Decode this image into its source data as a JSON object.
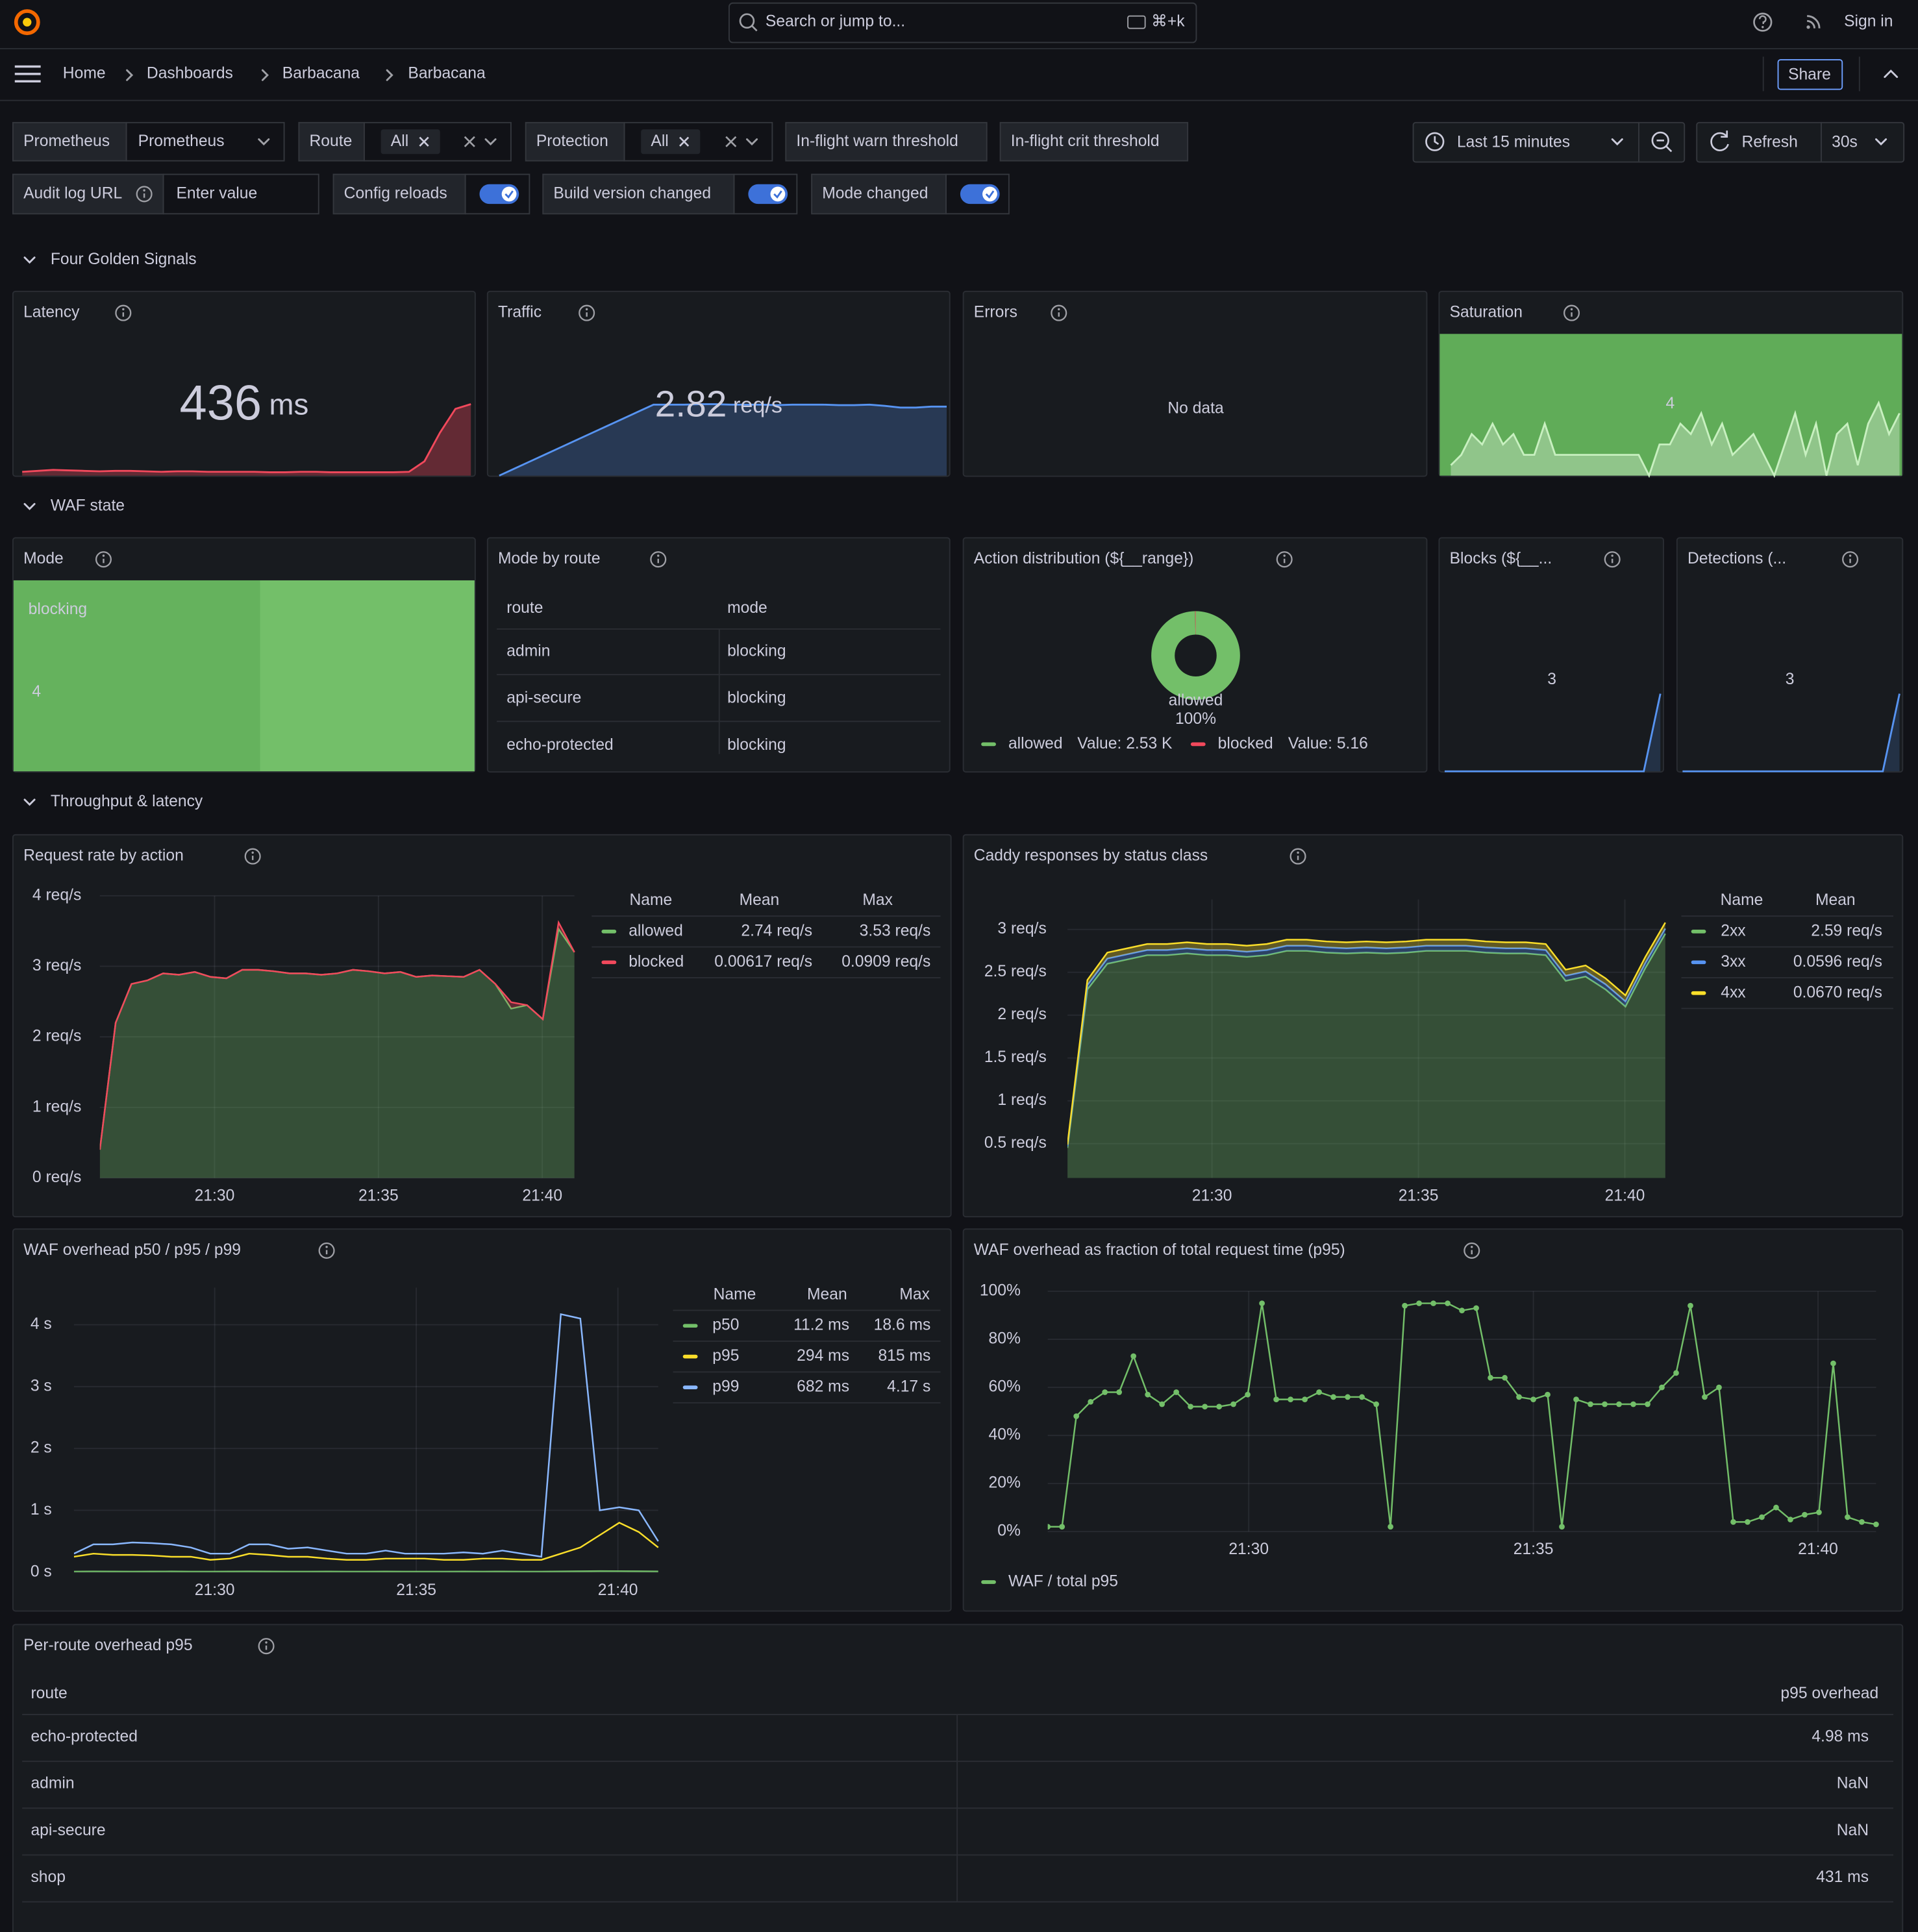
{
  "topbar": {
    "search_placeholder": "Search or jump to...",
    "shortcut": "⌘+k",
    "sign_in": "Sign in"
  },
  "breadcrumbs": [
    "Home",
    "Dashboards",
    "Barbacana",
    "Barbacana"
  ],
  "share": "Share",
  "variables": [
    {
      "label": "Prometheus",
      "value": "Prometheus"
    },
    {
      "label": "Route",
      "value": "All"
    },
    {
      "label": "Protection",
      "value": "All"
    },
    {
      "label": "In-flight warn threshold"
    },
    {
      "label": "In-flight crit threshold"
    },
    {
      "label": "Audit log URL",
      "placeholder": "Enter value"
    },
    {
      "label": "Config reloads",
      "enabled": true
    },
    {
      "label": "Build version changed",
      "enabled": true
    },
    {
      "label": "Mode changed",
      "enabled": true
    }
  ],
  "time_picker": {
    "range": "Last 15 minutes",
    "refresh": "Refresh",
    "interval": "30s"
  },
  "rows": [
    "Four Golden Signals",
    "WAF state",
    "Throughput & latency"
  ],
  "stats": {
    "latency": {
      "title": "Latency",
      "value": 436,
      "unit": "ms",
      "color": "#f2495c",
      "sparkline": [
        8,
        10,
        12,
        11,
        10,
        9,
        10,
        10,
        9,
        8,
        9,
        9,
        8,
        8,
        8,
        8,
        7,
        7,
        8,
        8,
        7,
        7,
        7,
        7,
        7,
        8,
        30,
        90,
        140,
        150
      ]
    },
    "traffic": {
      "title": "Traffic",
      "value": 2.82,
      "unit": "req/s",
      "color": "#5794f2",
      "sparkline": [
        0,
        0.29,
        0.58,
        0.87,
        1.16,
        1.45,
        1.74,
        2.03,
        2.32,
        2.61,
        2.9,
        2.9,
        2.9,
        2.92,
        2.92,
        2.9,
        2.9,
        2.9,
        2.88,
        2.9,
        2.9,
        2.9,
        2.88,
        2.88,
        2.9,
        2.85,
        2.78,
        2.78,
        2.82,
        2.82
      ]
    },
    "errors": {
      "title": "Errors",
      "text": "No data",
      "color": "#73bf69"
    },
    "saturation": {
      "title": "Saturation",
      "value": 4,
      "color": "#73bf69",
      "sparkline": [
        1,
        2,
        4,
        3,
        5,
        3,
        4,
        2,
        2,
        5,
        2,
        2,
        2,
        2,
        2,
        2,
        2,
        2,
        2,
        0,
        3,
        3,
        5,
        4,
        6,
        3,
        5,
        2,
        3,
        4,
        2,
        0,
        3,
        6,
        2,
        5,
        0,
        4,
        5,
        1,
        5,
        7,
        4,
        6
      ]
    },
    "mode": {
      "title": "Mode",
      "text": "blocking",
      "value": 4,
      "color": "#73bf69"
    },
    "blocks": {
      "title": "Blocks (${__...",
      "value": 3,
      "color": "#5794f2",
      "sparkline": [
        0,
        0,
        0,
        0,
        0,
        0,
        0,
        0,
        0,
        0,
        0,
        0,
        0,
        3
      ]
    },
    "detections": {
      "title": "Detections (...",
      "value": 3,
      "color": "#5794f2",
      "sparkline": [
        0,
        0,
        0,
        0,
        0,
        0,
        0,
        0,
        0,
        0,
        0,
        0,
        0,
        3
      ]
    }
  },
  "mode_by_route": {
    "title": "Mode by route",
    "columns": [
      "route",
      "mode"
    ],
    "rows": [
      [
        "admin",
        "blocking"
      ],
      [
        "api-secure",
        "blocking"
      ],
      [
        "echo-protected",
        "blocking"
      ]
    ]
  },
  "chart_data": [
    {
      "type": "pie",
      "donut": true,
      "title": "Action distribution (${__range})",
      "categories": [
        "allowed",
        "blocked"
      ],
      "values": [
        2530,
        5.16
      ],
      "value_labels": [
        "Value: 2.53 K",
        "Value: 5.16"
      ],
      "colors": [
        "#73bf69",
        "#f2495c"
      ],
      "center_label": "allowed",
      "center_percent": "100%"
    },
    {
      "type": "line",
      "stacked": true,
      "points": false,
      "legend": "right",
      "title": "Request rate by action",
      "legend_columns": [
        "Name",
        "Mean",
        "Max"
      ],
      "xlim": [
        26.5,
        40.98
      ],
      "xticks": [
        {
          "value": 30,
          "label": "21:30"
        },
        {
          "value": 35,
          "label": "21:35"
        },
        {
          "value": 40,
          "label": "21:40"
        }
      ],
      "ylim": [
        0,
        4
      ],
      "yticks": [
        {
          "value": 0,
          "label": "0 req/s"
        },
        {
          "value": 1,
          "label": "1 req/s"
        },
        {
          "value": 2,
          "label": "2 req/s"
        },
        {
          "value": 3,
          "label": "3 req/s"
        },
        {
          "value": 4,
          "label": "4 req/s"
        }
      ],
      "grid": true,
      "series": [
        {
          "name": "allowed",
          "color": "#73bf69",
          "mean": "2.74 req/s",
          "max": "3.53 req/s",
          "values": [
            0.4,
            2.2,
            2.75,
            2.8,
            2.9,
            2.88,
            2.92,
            2.85,
            2.83,
            2.95,
            2.95,
            2.93,
            2.9,
            2.9,
            2.88,
            2.9,
            2.95,
            2.93,
            2.9,
            2.92,
            2.85,
            2.87,
            2.86,
            2.85,
            2.95,
            2.75,
            2.4,
            2.45,
            2.25,
            3.53,
            3.2
          ]
        },
        {
          "name": "blocked",
          "color": "#f2495c",
          "mean": "0.00617 req/s",
          "max": "0.0909 req/s",
          "values": [
            0,
            0,
            0,
            0,
            0,
            0,
            0,
            0,
            0,
            0,
            0,
            0,
            0,
            0,
            0,
            0,
            0,
            0,
            0,
            0,
            0,
            0,
            0,
            0,
            0,
            0,
            0.0909,
            0,
            0,
            0.0909,
            0
          ]
        }
      ]
    },
    {
      "type": "line",
      "stacked": true,
      "points": false,
      "legend": "right",
      "title": "Caddy responses by status class",
      "legend_columns": [
        "Name",
        "Mean"
      ],
      "xlim": [
        26.5,
        40.98
      ],
      "xticks": [
        {
          "value": 30,
          "label": "21:30"
        },
        {
          "value": 35,
          "label": "21:35"
        },
        {
          "value": 40,
          "label": "21:40"
        }
      ],
      "ylim": [
        0.1,
        3.35
      ],
      "yticks": [
        {
          "value": 0.5,
          "label": "0.5 req/s"
        },
        {
          "value": 1,
          "label": "1 req/s"
        },
        {
          "value": 1.5,
          "label": "1.5 req/s"
        },
        {
          "value": 2,
          "label": "2 req/s"
        },
        {
          "value": 2.5,
          "label": "2.5 req/s"
        },
        {
          "value": 3,
          "label": "3 req/s"
        }
      ],
      "grid": true,
      "series": [
        {
          "name": "2xx",
          "color": "#73bf69",
          "mean": "2.59 req/s",
          "values": [
            0.45,
            2.3,
            2.6,
            2.65,
            2.7,
            2.7,
            2.72,
            2.7,
            2.7,
            2.68,
            2.7,
            2.75,
            2.75,
            2.73,
            2.72,
            2.73,
            2.72,
            2.73,
            2.75,
            2.75,
            2.75,
            2.73,
            2.72,
            2.72,
            2.7,
            2.4,
            2.45,
            2.3,
            2.1,
            2.55,
            2.95
          ]
        },
        {
          "name": "3xx",
          "color": "#5794f2",
          "mean": "0.0596 req/s",
          "values": [
            0.02,
            0.05,
            0.06,
            0.06,
            0.06,
            0.06,
            0.06,
            0.06,
            0.06,
            0.06,
            0.06,
            0.06,
            0.06,
            0.06,
            0.06,
            0.06,
            0.06,
            0.06,
            0.06,
            0.06,
            0.06,
            0.06,
            0.06,
            0.06,
            0.06,
            0.06,
            0.06,
            0.06,
            0.06,
            0.06,
            0.06
          ]
        },
        {
          "name": "4xx",
          "color": "#fade2a",
          "mean": "0.0670 req/s",
          "values": [
            0.02,
            0.06,
            0.07,
            0.07,
            0.07,
            0.07,
            0.07,
            0.07,
            0.07,
            0.07,
            0.07,
            0.07,
            0.07,
            0.07,
            0.07,
            0.07,
            0.07,
            0.07,
            0.07,
            0.07,
            0.07,
            0.07,
            0.07,
            0.07,
            0.07,
            0.07,
            0.07,
            0.07,
            0.07,
            0.07,
            0.07
          ]
        }
      ]
    },
    {
      "type": "line",
      "stacked": false,
      "points": false,
      "legend": "right",
      "title": "WAF overhead p50 / p95 / p99",
      "legend_columns": [
        "Name",
        "Mean",
        "Max"
      ],
      "xlim": [
        26.51,
        41.0
      ],
      "xticks": [
        {
          "value": 30,
          "label": "21:30"
        },
        {
          "value": 35,
          "label": "21:35"
        },
        {
          "value": 40,
          "label": "21:40"
        }
      ],
      "ylim": [
        0,
        4.6
      ],
      "yticks": [
        {
          "value": 0,
          "label": "0 s"
        },
        {
          "value": 1,
          "label": "1 s"
        },
        {
          "value": 2,
          "label": "2 s"
        },
        {
          "value": 3,
          "label": "3 s"
        },
        {
          "value": 4,
          "label": "4 s"
        }
      ],
      "grid": true,
      "series": [
        {
          "name": "p50",
          "color": "#73bf69",
          "mean": "11.2 ms",
          "max": "18.6 ms",
          "values": [
            0.01,
            0.012,
            0.011,
            0.01,
            0.011,
            0.012,
            0.01,
            0.01,
            0.011,
            0.012,
            0.011,
            0.01,
            0.01,
            0.011,
            0.01,
            0.01,
            0.011,
            0.01,
            0.01,
            0.01,
            0.011,
            0.01,
            0.011,
            0.01,
            0.01,
            0.012,
            0.015,
            0.018,
            0.017,
            0.015,
            0.012
          ]
        },
        {
          "name": "p95",
          "color": "#fade2a",
          "mean": "294 ms",
          "max": "815 ms",
          "values": [
            0.25,
            0.3,
            0.28,
            0.28,
            0.27,
            0.25,
            0.25,
            0.2,
            0.22,
            0.3,
            0.28,
            0.25,
            0.25,
            0.22,
            0.2,
            0.2,
            0.22,
            0.22,
            0.22,
            0.2,
            0.2,
            0.22,
            0.22,
            0.2,
            0.2,
            0.3,
            0.4,
            0.6,
            0.8,
            0.65,
            0.4
          ]
        },
        {
          "name": "p99",
          "color": "#8ab8ff",
          "mean": "682 ms",
          "max": "4.17 s",
          "values": [
            0.3,
            0.45,
            0.45,
            0.48,
            0.47,
            0.45,
            0.4,
            0.3,
            0.3,
            0.45,
            0.45,
            0.38,
            0.4,
            0.35,
            0.3,
            0.3,
            0.35,
            0.3,
            0.3,
            0.3,
            0.32,
            0.3,
            0.35,
            0.3,
            0.25,
            4.17,
            4.1,
            1.0,
            1.05,
            1.0,
            0.5
          ]
        }
      ]
    },
    {
      "type": "line",
      "stacked": false,
      "points": true,
      "legend": "bottom",
      "title": "WAF overhead as fraction of total request time (p95)",
      "xlim": [
        26.47,
        41.02
      ],
      "xticks": [
        {
          "value": 30,
          "label": "21:30"
        },
        {
          "value": 35,
          "label": "21:35"
        },
        {
          "value": 40,
          "label": "21:40"
        }
      ],
      "ylim": [
        0,
        100
      ],
      "yticks": [
        {
          "value": 0,
          "label": "0%"
        },
        {
          "value": 20,
          "label": "20%"
        },
        {
          "value": 40,
          "label": "40%"
        },
        {
          "value": 60,
          "label": "60%"
        },
        {
          "value": 80,
          "label": "80%"
        },
        {
          "value": 100,
          "label": "100%"
        }
      ],
      "grid": true,
      "series": [
        {
          "name": "WAF / total p95",
          "color": "#73bf69",
          "values": [
            2,
            2,
            48,
            54,
            58,
            58,
            73,
            57,
            53,
            58,
            52,
            52,
            52,
            53,
            57,
            95,
            55,
            55,
            55,
            58,
            56,
            56,
            56,
            53,
            2,
            94,
            95,
            95,
            95,
            92,
            93,
            64,
            64,
            56,
            55,
            57,
            2,
            55,
            53,
            53,
            53,
            53,
            53,
            60,
            66,
            94,
            56,
            60,
            4,
            4,
            6,
            10,
            5,
            7,
            8,
            70,
            6,
            4,
            3
          ]
        }
      ]
    }
  ],
  "per_route": {
    "title": "Per-route overhead p95",
    "columns": [
      "route",
      "p95 overhead"
    ],
    "rows": [
      [
        "echo-protected",
        "4.98 ms"
      ],
      [
        "admin",
        "NaN"
      ],
      [
        "api-secure",
        "NaN"
      ],
      [
        "shop",
        "431 ms"
      ]
    ]
  }
}
